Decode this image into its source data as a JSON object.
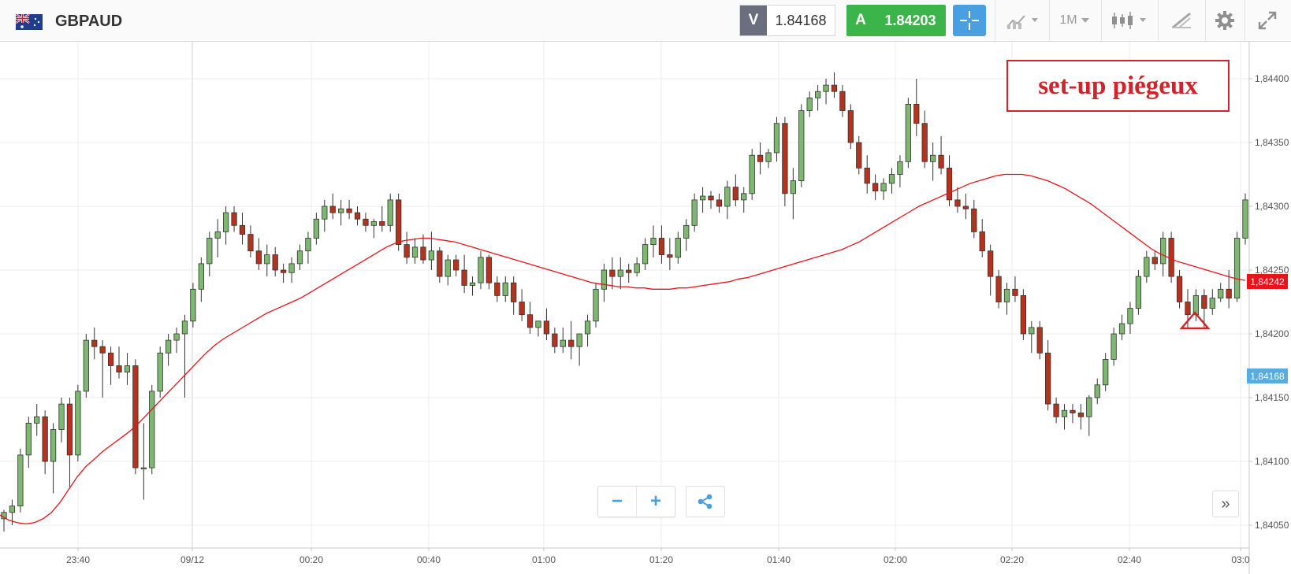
{
  "toolbar": {
    "symbol": "GBPAUD",
    "sell_label": "V",
    "sell_price": "1.84168",
    "buy_label": "A",
    "buy_price": "1.84203",
    "timeframe": "1M",
    "icons": [
      "flag-gb-au-icon",
      "crosshair-icon",
      "chart-type-icon",
      "timeframe-dropdown",
      "candles-icon",
      "draw-icon",
      "gear-icon",
      "fullscreen-icon"
    ]
  },
  "annotation": "set-up piégeux",
  "markers": {
    "current_value": "1,84242",
    "current_color": "#e8141b",
    "bid_value": "1,84168",
    "bid_color": "#5aacde"
  },
  "controls": {
    "zoom_out": "−",
    "zoom_in": "+",
    "scroll": "»"
  },
  "chart_data": {
    "type": "candlestick",
    "symbol": "GBPAUD",
    "ylim": [
      1.8404,
      1.8444
    ],
    "y_ticks": [
      "1,84050",
      "1,84100",
      "1,84150",
      "1,84200",
      "1,84250",
      "1,84300",
      "1,84350",
      "1,84400"
    ],
    "x_ticks": [
      "23:40",
      "09/12",
      "00:20",
      "00:40",
      "01:00",
      "01:20",
      "01:40",
      "02:00",
      "02:20",
      "02:40",
      "03:0"
    ],
    "grid": true,
    "up_color": "#7cb86e",
    "down_color": "#b5321d",
    "ma_color": "#e8141b",
    "candles": [
      [
        1.84055,
        1.84062,
        1.84045,
        1.8406
      ],
      [
        1.8406,
        1.8407,
        1.8405,
        1.84065
      ],
      [
        1.84065,
        1.8411,
        1.8406,
        1.84105
      ],
      [
        1.84105,
        1.84135,
        1.84095,
        1.8413
      ],
      [
        1.8413,
        1.84145,
        1.8412,
        1.84135
      ],
      [
        1.84135,
        1.8414,
        1.8409,
        1.841
      ],
      [
        1.841,
        1.8413,
        1.84075,
        1.84125
      ],
      [
        1.84125,
        1.8415,
        1.84115,
        1.84145
      ],
      [
        1.84145,
        1.8415,
        1.8408,
        1.84105
      ],
      [
        1.84105,
        1.8416,
        1.841,
        1.84155
      ],
      [
        1.84155,
        1.842,
        1.8415,
        1.84195
      ],
      [
        1.84195,
        1.84205,
        1.8418,
        1.8419
      ],
      [
        1.8419,
        1.84195,
        1.8415,
        1.84185
      ],
      [
        1.84185,
        1.8419,
        1.8416,
        1.84175
      ],
      [
        1.84175,
        1.8419,
        1.84165,
        1.8417
      ],
      [
        1.8417,
        1.84185,
        1.8416,
        1.84175
      ],
      [
        1.84175,
        1.8418,
        1.8409,
        1.84095
      ],
      [
        1.84095,
        1.8413,
        1.8407,
        1.84095
      ],
      [
        1.84095,
        1.8416,
        1.8409,
        1.84155
      ],
      [
        1.84155,
        1.8419,
        1.8415,
        1.84185
      ],
      [
        1.84185,
        1.842,
        1.84175,
        1.84195
      ],
      [
        1.84195,
        1.84205,
        1.84185,
        1.842
      ],
      [
        1.842,
        1.84215,
        1.8415,
        1.8421
      ],
      [
        1.8421,
        1.8424,
        1.84205,
        1.84235
      ],
      [
        1.84235,
        1.8426,
        1.84225,
        1.84255
      ],
      [
        1.84255,
        1.8428,
        1.84245,
        1.84275
      ],
      [
        1.84275,
        1.8429,
        1.8426,
        1.8428
      ],
      [
        1.8428,
        1.843,
        1.8427,
        1.84295
      ],
      [
        1.84295,
        1.843,
        1.8428,
        1.84285
      ],
      [
        1.84285,
        1.84295,
        1.8427,
        1.84278
      ],
      [
        1.84278,
        1.84285,
        1.8426,
        1.84265
      ],
      [
        1.84265,
        1.84275,
        1.8425,
        1.84255
      ],
      [
        1.84255,
        1.8427,
        1.84245,
        1.84262
      ],
      [
        1.84262,
        1.84268,
        1.84245,
        1.8425
      ],
      [
        1.8425,
        1.84255,
        1.8424,
        1.84248
      ],
      [
        1.84248,
        1.8426,
        1.8424,
        1.84255
      ],
      [
        1.84255,
        1.8427,
        1.8425,
        1.84265
      ],
      [
        1.84265,
        1.8428,
        1.84255,
        1.84275
      ],
      [
        1.84275,
        1.84295,
        1.8427,
        1.8429
      ],
      [
        1.8429,
        1.84305,
        1.8428,
        1.843
      ],
      [
        1.843,
        1.8431,
        1.8429,
        1.84295
      ],
      [
        1.84295,
        1.84305,
        1.84285,
        1.84298
      ],
      [
        1.84298,
        1.84305,
        1.8429,
        1.84295
      ],
      [
        1.84295,
        1.843,
        1.84285,
        1.8429
      ],
      [
        1.8429,
        1.84295,
        1.8428,
        1.84285
      ],
      [
        1.84285,
        1.8429,
        1.84275,
        1.84288
      ],
      [
        1.84288,
        1.843,
        1.8428,
        1.84285
      ],
      [
        1.84285,
        1.8431,
        1.8428,
        1.84305
      ],
      [
        1.84305,
        1.8431,
        1.84265,
        1.8427
      ],
      [
        1.8427,
        1.8428,
        1.84255,
        1.8426
      ],
      [
        1.8426,
        1.84275,
        1.84255,
        1.84268
      ],
      [
        1.84268,
        1.84278,
        1.84255,
        1.84258
      ],
      [
        1.84258,
        1.8428,
        1.8425,
        1.84265
      ],
      [
        1.84265,
        1.84268,
        1.8424,
        1.84245
      ],
      [
        1.84245,
        1.84262,
        1.84238,
        1.84258
      ],
      [
        1.84258,
        1.84262,
        1.84245,
        1.8425
      ],
      [
        1.8425,
        1.84262,
        1.84232,
        1.84238
      ],
      [
        1.84238,
        1.84245,
        1.8423,
        1.8424
      ],
      [
        1.8424,
        1.84265,
        1.84235,
        1.8426
      ],
      [
        1.8426,
        1.84262,
        1.84235,
        1.8424
      ],
      [
        1.8424,
        1.84245,
        1.84225,
        1.8423
      ],
      [
        1.8423,
        1.84245,
        1.84225,
        1.8424
      ],
      [
        1.8424,
        1.84245,
        1.84215,
        1.84225
      ],
      [
        1.84225,
        1.84235,
        1.8421,
        1.84215
      ],
      [
        1.84215,
        1.84225,
        1.842,
        1.84205
      ],
      [
        1.84205,
        1.8421,
        1.84198,
        1.8421
      ],
      [
        1.8421,
        1.8422,
        1.84195,
        1.842
      ],
      [
        1.842,
        1.84205,
        1.84185,
        1.8419
      ],
      [
        1.8419,
        1.84205,
        1.84185,
        1.84195
      ],
      [
        1.84195,
        1.8421,
        1.8418,
        1.8419
      ],
      [
        1.8419,
        1.842,
        1.84175,
        1.842
      ],
      [
        1.842,
        1.84215,
        1.8419,
        1.8421
      ],
      [
        1.8421,
        1.8424,
        1.84205,
        1.84235
      ],
      [
        1.84235,
        1.84255,
        1.84225,
        1.8425
      ],
      [
        1.8425,
        1.8426,
        1.84235,
        1.84245
      ],
      [
        1.84245,
        1.8426,
        1.84235,
        1.8425
      ],
      [
        1.8425,
        1.84255,
        1.8424,
        1.84248
      ],
      [
        1.84248,
        1.8426,
        1.84245,
        1.84255
      ],
      [
        1.84255,
        1.84275,
        1.8425,
        1.8427
      ],
      [
        1.8427,
        1.84285,
        1.8426,
        1.84275
      ],
      [
        1.84275,
        1.84285,
        1.84255,
        1.84262
      ],
      [
        1.84262,
        1.84275,
        1.8425,
        1.8426
      ],
      [
        1.8426,
        1.8428,
        1.84255,
        1.84275
      ],
      [
        1.84275,
        1.8429,
        1.84265,
        1.84285
      ],
      [
        1.84285,
        1.8431,
        1.8428,
        1.84305
      ],
      [
        1.84305,
        1.84315,
        1.84295,
        1.84308
      ],
      [
        1.84308,
        1.84312,
        1.84298,
        1.84305
      ],
      [
        1.84305,
        1.8431,
        1.84295,
        1.843
      ],
      [
        1.843,
        1.8432,
        1.8429,
        1.84315
      ],
      [
        1.84315,
        1.84325,
        1.843,
        1.84305
      ],
      [
        1.84305,
        1.84315,
        1.84295,
        1.8431
      ],
      [
        1.8431,
        1.84345,
        1.84305,
        1.8434
      ],
      [
        1.8434,
        1.8435,
        1.84325,
        1.84335
      ],
      [
        1.84335,
        1.84345,
        1.8433,
        1.84342
      ],
      [
        1.84342,
        1.8437,
        1.84335,
        1.84365
      ],
      [
        1.84365,
        1.8437,
        1.843,
        1.8431
      ],
      [
        1.8431,
        1.8433,
        1.8429,
        1.8432
      ],
      [
        1.8432,
        1.8438,
        1.84315,
        1.84375
      ],
      [
        1.84375,
        1.8439,
        1.8437,
        1.84385
      ],
      [
        1.84385,
        1.84395,
        1.84375,
        1.8439
      ],
      [
        1.8439,
        1.844,
        1.8438,
        1.84395
      ],
      [
        1.84395,
        1.84405,
        1.84385,
        1.8439
      ],
      [
        1.8439,
        1.84395,
        1.8437,
        1.84375
      ],
      [
        1.84375,
        1.8438,
        1.84345,
        1.8435
      ],
      [
        1.8435,
        1.84355,
        1.84325,
        1.8433
      ],
      [
        1.8433,
        1.8434,
        1.8431,
        1.84318
      ],
      [
        1.84318,
        1.84325,
        1.84305,
        1.84312
      ],
      [
        1.84312,
        1.84322,
        1.84305,
        1.84318
      ],
      [
        1.84318,
        1.8433,
        1.8431,
        1.84325
      ],
      [
        1.84325,
        1.8434,
        1.84315,
        1.84335
      ],
      [
        1.84335,
        1.84385,
        1.8433,
        1.8438
      ],
      [
        1.8438,
        1.844,
        1.84355,
        1.84365
      ],
      [
        1.84365,
        1.84375,
        1.8433,
        1.84335
      ],
      [
        1.84335,
        1.8435,
        1.8432,
        1.8434
      ],
      [
        1.8434,
        1.84355,
        1.84325,
        1.8433
      ],
      [
        1.8433,
        1.8434,
        1.843,
        1.84305
      ],
      [
        1.84305,
        1.84315,
        1.84295,
        1.843
      ],
      [
        1.843,
        1.8431,
        1.8429,
        1.84298
      ],
      [
        1.84298,
        1.84305,
        1.84275,
        1.8428
      ],
      [
        1.8428,
        1.8429,
        1.8426,
        1.84265
      ],
      [
        1.84265,
        1.8427,
        1.8423,
        1.84245
      ],
      [
        1.84245,
        1.8425,
        1.8422,
        1.84225
      ],
      [
        1.84225,
        1.8424,
        1.84215,
        1.84235
      ],
      [
        1.84235,
        1.84245,
        1.84225,
        1.8423
      ],
      [
        1.8423,
        1.84235,
        1.84195,
        1.842
      ],
      [
        1.842,
        1.8421,
        1.84185,
        1.84205
      ],
      [
        1.84205,
        1.8421,
        1.8418,
        1.84185
      ],
      [
        1.84185,
        1.84195,
        1.8414,
        1.84145
      ],
      [
        1.84145,
        1.8415,
        1.8413,
        1.84135
      ],
      [
        1.84135,
        1.84145,
        1.84125,
        1.8414
      ],
      [
        1.8414,
        1.84145,
        1.8413,
        1.84138
      ],
      [
        1.84138,
        1.84145,
        1.84125,
        1.84135
      ],
      [
        1.84135,
        1.84152,
        1.8412,
        1.8415
      ],
      [
        1.8415,
        1.84165,
        1.84145,
        1.8416
      ],
      [
        1.8416,
        1.84185,
        1.84155,
        1.8418
      ],
      [
        1.8418,
        1.84205,
        1.84175,
        1.842
      ],
      [
        1.842,
        1.84215,
        1.84195,
        1.84208
      ],
      [
        1.84208,
        1.84225,
        1.842,
        1.8422
      ],
      [
        1.8422,
        1.8425,
        1.84215,
        1.84245
      ],
      [
        1.84245,
        1.84265,
        1.8424,
        1.8426
      ],
      [
        1.8426,
        1.84265,
        1.8425,
        1.84255
      ],
      [
        1.84255,
        1.8428,
        1.84245,
        1.84275
      ],
      [
        1.84275,
        1.8428,
        1.8424,
        1.84245
      ],
      [
        1.84245,
        1.8425,
        1.8422,
        1.84225
      ],
      [
        1.84225,
        1.84235,
        1.84205,
        1.84215
      ],
      [
        1.84215,
        1.84235,
        1.8421,
        1.8423
      ],
      [
        1.8423,
        1.84235,
        1.84205,
        1.8422
      ],
      [
        1.8422,
        1.84235,
        1.84215,
        1.84228
      ],
      [
        1.84228,
        1.8424,
        1.84225,
        1.84235
      ],
      [
        1.84235,
        1.8425,
        1.8422,
        1.84228
      ],
      [
        1.84228,
        1.8428,
        1.84225,
        1.84275
      ],
      [
        1.84275,
        1.8431,
        1.8427,
        1.84305
      ]
    ],
    "moving_average": [
      1.84058,
      1.84054,
      1.84052,
      1.84051,
      1.84052,
      1.84055,
      1.8406,
      1.84068,
      1.84078,
      1.84088,
      1.84096,
      1.84102,
      1.84108,
      1.84113,
      1.84118,
      1.84123,
      1.84129,
      1.84136,
      1.84143,
      1.8415,
      1.84157,
      1.84164,
      1.84171,
      1.84178,
      1.84185,
      1.84191,
      1.84196,
      1.842,
      1.84204,
      1.84208,
      1.84212,
      1.84216,
      1.84219,
      1.84222,
      1.84225,
      1.84228,
      1.84232,
      1.84236,
      1.8424,
      1.84244,
      1.84248,
      1.84252,
      1.84256,
      1.8426,
      1.84264,
      1.84268,
      1.84271,
      1.84273,
      1.84274,
      1.84275,
      1.84275,
      1.84274,
      1.84273,
      1.84272,
      1.8427,
      1.84268,
      1.84266,
      1.84264,
      1.84262,
      1.8426,
      1.84258,
      1.84256,
      1.84254,
      1.84252,
      1.8425,
      1.84248,
      1.84246,
      1.84244,
      1.84242,
      1.8424,
      1.84239,
      1.84238,
      1.84237,
      1.84237,
      1.84236,
      1.84236,
      1.84235,
      1.84235,
      1.84235,
      1.84236,
      1.84236,
      1.84237,
      1.84238,
      1.84239,
      1.8424,
      1.84241,
      1.84243,
      1.84244,
      1.84246,
      1.84248,
      1.8425,
      1.84252,
      1.84254,
      1.84256,
      1.84258,
      1.8426,
      1.84262,
      1.84264,
      1.84266,
      1.84269,
      1.84272,
      1.84276,
      1.8428,
      1.84284,
      1.84288,
      1.84292,
      1.84296,
      1.843,
      1.84303,
      1.84306,
      1.84309,
      1.84312,
      1.84315,
      1.84318,
      1.8432,
      1.84322,
      1.84324,
      1.84325,
      1.84325,
      1.84325,
      1.84324,
      1.84322,
      1.8432,
      1.84317,
      1.84314,
      1.8431,
      1.84306,
      1.84302,
      1.84297,
      1.84292,
      1.84287,
      1.84282,
      1.84277,
      1.84272,
      1.84267,
      1.84263,
      1.8426,
      1.84257,
      1.84255,
      1.84253,
      1.84251,
      1.84249,
      1.84247,
      1.84245,
      1.84243,
      1.84242
    ]
  }
}
